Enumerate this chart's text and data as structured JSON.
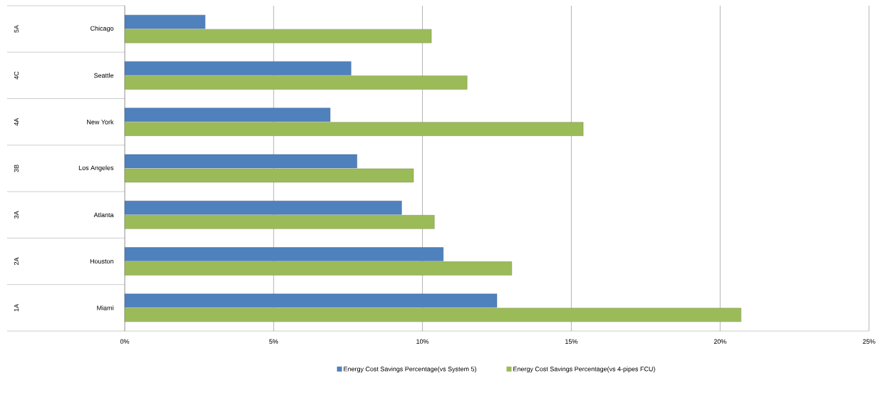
{
  "chart_data": {
    "type": "bar",
    "orientation": "horizontal",
    "categories": [
      "Chicago",
      "Seattle",
      "New York",
      "Los Angeles",
      "Atlanta",
      "Houston",
      "Miami"
    ],
    "annotations": [
      "5A",
      "4C",
      "4A",
      "3B",
      "3A",
      "2A",
      "1A"
    ],
    "series": [
      {
        "name": "Energy Cost Savings Percentage(vs System 5)",
        "color": "#4f81bd",
        "values": [
          2.7,
          7.6,
          6.9,
          7.8,
          9.3,
          10.7,
          12.5
        ]
      },
      {
        "name": "Energy Cost Savings Percentage(vs 4-pipes FCU)",
        "color": "#9bbb59",
        "values": [
          10.3,
          11.5,
          15.4,
          9.7,
          10.4,
          13.0,
          20.7
        ]
      }
    ],
    "xlim": [
      0,
      25
    ],
    "xticks": [
      {
        "value": 0,
        "label": "0%"
      },
      {
        "value": 5,
        "label": "5%"
      },
      {
        "value": 10,
        "label": "10%"
      },
      {
        "value": 15,
        "label": "15%"
      },
      {
        "value": 20,
        "label": "20%"
      },
      {
        "value": 25,
        "label": "25%"
      }
    ],
    "grid": "x",
    "legend": "bottom"
  }
}
